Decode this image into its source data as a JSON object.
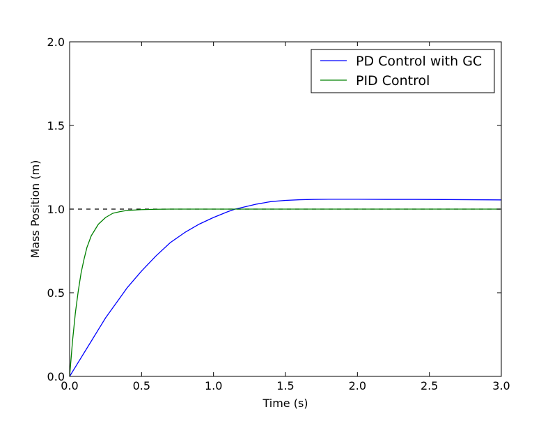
{
  "chart_data": {
    "type": "line",
    "title": "",
    "xlabel": "Time (s)",
    "ylabel": "Mass Position (m)",
    "xlim": [
      0.0,
      3.0
    ],
    "ylim": [
      0.0,
      2.0
    ],
    "grid": false,
    "legend_position": "top-right",
    "x_ticks": [
      0.0,
      0.5,
      1.0,
      1.5,
      2.0,
      2.5,
      3.0
    ],
    "x_tick_labels": [
      "0.0",
      "0.5",
      "1.0",
      "1.5",
      "2.0",
      "2.5",
      "3.0"
    ],
    "y_ticks": [
      0.0,
      0.5,
      1.0,
      1.5,
      2.0
    ],
    "y_tick_labels": [
      "0.0",
      "0.5",
      "1.0",
      "1.5",
      "2.0"
    ],
    "reference_line": {
      "y": 1.0,
      "style": "dashed",
      "color": "#000000"
    },
    "series": [
      {
        "name": "PD Control with GC",
        "color": "#0000ff",
        "x": [
          0.0,
          0.05,
          0.1,
          0.15,
          0.2,
          0.25,
          0.3,
          0.35,
          0.4,
          0.45,
          0.5,
          0.6,
          0.7,
          0.8,
          0.9,
          1.0,
          1.1,
          1.15,
          1.2,
          1.3,
          1.4,
          1.5,
          1.6,
          1.7,
          1.8,
          2.0,
          2.2,
          2.4,
          2.6,
          2.8,
          3.0
        ],
        "y": [
          0.0,
          0.07,
          0.14,
          0.21,
          0.28,
          0.35,
          0.41,
          0.47,
          0.53,
          0.58,
          0.63,
          0.72,
          0.8,
          0.86,
          0.91,
          0.95,
          0.985,
          1.0,
          1.01,
          1.03,
          1.045,
          1.052,
          1.056,
          1.058,
          1.059,
          1.059,
          1.058,
          1.058,
          1.057,
          1.056,
          1.055
        ]
      },
      {
        "name": "PID Control",
        "color": "#008000",
        "x": [
          0.0,
          0.02,
          0.04,
          0.06,
          0.08,
          0.1,
          0.12,
          0.15,
          0.2,
          0.25,
          0.3,
          0.35,
          0.4,
          0.5,
          0.6,
          0.7,
          0.8,
          1.0,
          1.5,
          2.0,
          2.5,
          3.0
        ],
        "y": [
          0.0,
          0.21,
          0.38,
          0.51,
          0.62,
          0.7,
          0.77,
          0.84,
          0.91,
          0.95,
          0.975,
          0.985,
          0.992,
          0.997,
          0.999,
          1.0,
          1.0,
          1.0,
          1.0,
          1.0,
          1.0,
          1.0
        ]
      }
    ]
  }
}
